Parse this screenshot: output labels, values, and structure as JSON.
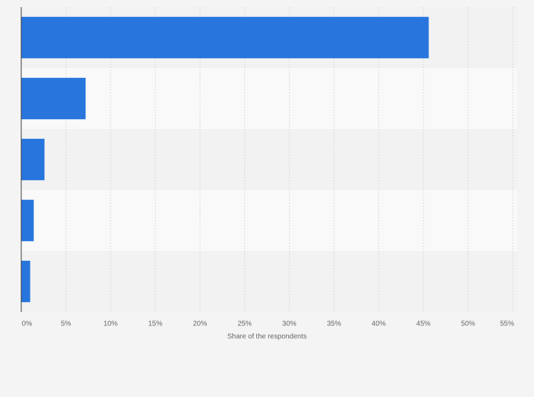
{
  "chart_data": {
    "type": "hbar",
    "x_label": "Share of the respondents",
    "categories": [
      null,
      null,
      null,
      null,
      null
    ],
    "values": [
      45.6,
      7.2,
      2.6,
      1.4,
      1.0
    ],
    "color": "#2876dd",
    "xlim": [
      0,
      55
    ],
    "xticks": [
      {
        "value": 0,
        "label": "0%"
      },
      {
        "value": 5,
        "label": "5%"
      },
      {
        "value": 10,
        "label": "10%"
      },
      {
        "value": 15,
        "label": "15%"
      },
      {
        "value": 20,
        "label": "20%"
      },
      {
        "value": 25,
        "label": "25%"
      },
      {
        "value": 30,
        "label": "30%"
      },
      {
        "value": 35,
        "label": "35%"
      },
      {
        "value": 40,
        "label": "40%"
      },
      {
        "value": 45,
        "label": "45%"
      },
      {
        "value": 50,
        "label": "50%"
      },
      {
        "value": 55,
        "label": "55%"
      }
    ],
    "grid": true
  }
}
